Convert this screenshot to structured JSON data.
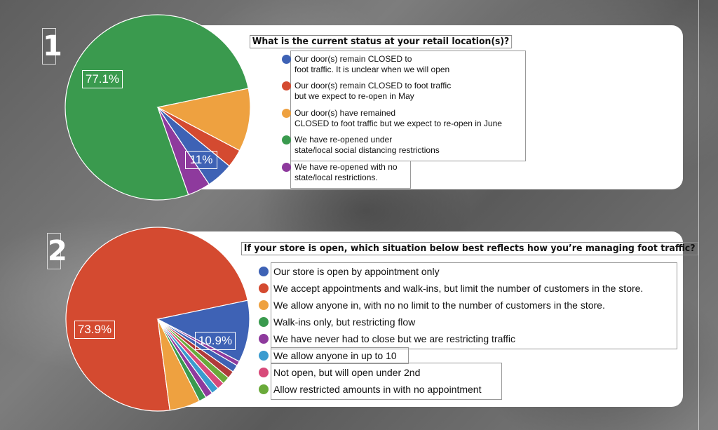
{
  "chart_data": [
    {
      "type": "pie",
      "number": "1",
      "title": "What is the current status at your retail location(s)?",
      "slices": [
        {
          "label": "We have re-opened under\nstate/local social distancing restrictions",
          "value": 77.1,
          "color": "#3a9a4e",
          "display": "77.1%"
        },
        {
          "label": "We have re-opened with no\nstate/local restrictions.",
          "value": 4.0,
          "color": "#8e3a9d",
          "display": ""
        },
        {
          "label": "Our door(s) remain CLOSED to\nfoot traffic. It is unclear when we will open",
          "value": 4.7,
          "color": "#3e62b5",
          "display": ""
        },
        {
          "label": "Our door(s) remain CLOSED to foot traffic\nbut we expect to re-open in May",
          "value": 3.2,
          "color": "#d44a30",
          "display": ""
        },
        {
          "label": "Our door(s) have remained\nCLOSED to foot traffic but we expect to re-open in June",
          "value": 11.0,
          "color": "#eea140",
          "display": "11%"
        }
      ],
      "legend_order": [
        2,
        3,
        4,
        0,
        1
      ]
    },
    {
      "type": "pie",
      "number": "2",
      "title": "If your store is open, which situation below best reflects how you’re managing foot traffic?",
      "slices": [
        {
          "label": "We accept appointments and walk-ins, but limit the number of customers in the store.",
          "value": 73.9,
          "color": "#d44a30",
          "display": "73.9%"
        },
        {
          "label": "We allow anyone in, with no no limit to the number of customers in the store.",
          "value": 5.4,
          "color": "#eea140",
          "display": ""
        },
        {
          "label": "Walk-ins only, but restricting flow",
          "value": 1.3,
          "color": "#3a9a4e",
          "display": ""
        },
        {
          "label": "We have never had to close but we are restricting traffic",
          "value": 1.3,
          "color": "#8e3a9d",
          "display": ""
        },
        {
          "label": "We allow anyone in up to 10",
          "value": 1.3,
          "color": "#3a9bcf",
          "display": ""
        },
        {
          "label": "Not open, but will open under 2nd",
          "value": 1.3,
          "color": "#d84a7a",
          "display": ""
        },
        {
          "label": "Allow restricted amounts in with no appointment",
          "value": 1.3,
          "color": "#6aaa3a",
          "display": ""
        },
        {
          "label": "",
          "value": 1.3,
          "color": "#b03a3a",
          "display": ""
        },
        {
          "label": "",
          "value": 1.3,
          "color": "#3e62b5",
          "display": ""
        },
        {
          "label": "",
          "value": 0.8,
          "color": "#8e3a9d",
          "display": ""
        },
        {
          "label": "Our store is open by appointment only",
          "value": 10.9,
          "color": "#3e62b5",
          "display": "10.9%"
        }
      ],
      "legend_order": [
        10,
        0,
        1,
        2,
        3,
        4,
        5,
        6
      ]
    }
  ]
}
